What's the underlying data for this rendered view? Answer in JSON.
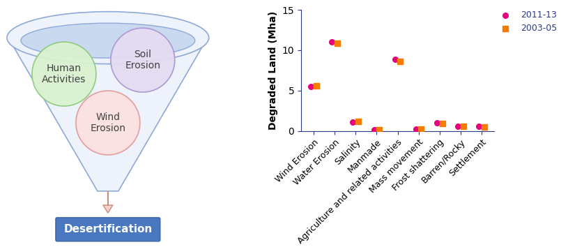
{
  "diagram": {
    "funnel_items": [
      "Human Activities",
      "Soil Erosion",
      "Wind Erosion"
    ],
    "result": "Desertification"
  },
  "chart_data": {
    "type": "scatter",
    "categories": [
      "Wind Erosion",
      "Water Erosion",
      "Salinity",
      "Manmade",
      "Agriculture and related activities",
      "Mass movement",
      "Frost shattering",
      "Barren/Rocky",
      "Settlement"
    ],
    "series": [
      {
        "name": "2011-13",
        "color": "#e6007e",
        "marker": "o",
        "values": [
          5.5,
          11.0,
          1.1,
          0.1,
          8.9,
          0.25,
          1.0,
          0.55,
          0.55
        ]
      },
      {
        "name": "2003-05",
        "color": "#f57c00",
        "marker": "s",
        "values": [
          5.6,
          10.9,
          1.2,
          0.1,
          8.6,
          0.25,
          0.95,
          0.55,
          0.45
        ]
      }
    ],
    "y_label": "Degraded Land (Mha)",
    "ylim": [
      0,
      15
    ],
    "yticks": [
      0,
      5,
      10,
      15
    ],
    "legend": "upper right",
    "grid": false
  }
}
